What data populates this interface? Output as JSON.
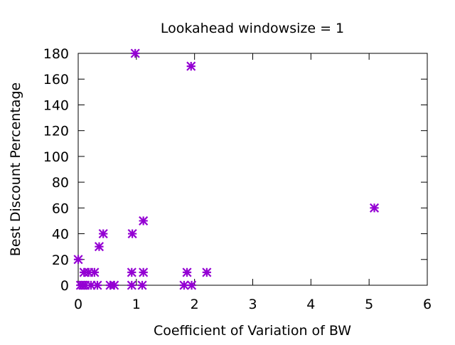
{
  "chart_data": {
    "type": "scatter",
    "title": "Lookahead windowsize = 1",
    "xlabel": "Coefficient of Variation of BW",
    "ylabel": "Best Discount Percentage",
    "xlim": [
      0,
      6
    ],
    "ylim": [
      0,
      180
    ],
    "xticks": [
      "0",
      "1",
      "2",
      "3",
      "4",
      "5",
      "6"
    ],
    "yticks": [
      "0",
      "20",
      "40",
      "60",
      "80",
      "100",
      "120",
      "140",
      "160",
      "180"
    ],
    "grid": false,
    "legend": "none",
    "marker_color": "#9400d3",
    "marker": "star",
    "points": [
      {
        "x": 0.98,
        "y": 180
      },
      {
        "x": 1.94,
        "y": 170
      },
      {
        "x": 5.09,
        "y": 60
      },
      {
        "x": 1.12,
        "y": 50
      },
      {
        "x": 0.43,
        "y": 40
      },
      {
        "x": 0.93,
        "y": 40
      },
      {
        "x": 0.36,
        "y": 30
      },
      {
        "x": 0.0,
        "y": 20
      },
      {
        "x": 0.1,
        "y": 10
      },
      {
        "x": 0.18,
        "y": 10
      },
      {
        "x": 0.28,
        "y": 10
      },
      {
        "x": 0.92,
        "y": 10
      },
      {
        "x": 1.12,
        "y": 10
      },
      {
        "x": 1.87,
        "y": 10
      },
      {
        "x": 2.21,
        "y": 10
      },
      {
        "x": 0.04,
        "y": 0
      },
      {
        "x": 0.08,
        "y": 0
      },
      {
        "x": 0.12,
        "y": 0
      },
      {
        "x": 0.22,
        "y": 0
      },
      {
        "x": 0.33,
        "y": 0
      },
      {
        "x": 0.55,
        "y": 0
      },
      {
        "x": 0.62,
        "y": 0
      },
      {
        "x": 0.92,
        "y": 0
      },
      {
        "x": 1.1,
        "y": 0
      },
      {
        "x": 1.82,
        "y": 0
      },
      {
        "x": 1.95,
        "y": 0
      }
    ]
  }
}
